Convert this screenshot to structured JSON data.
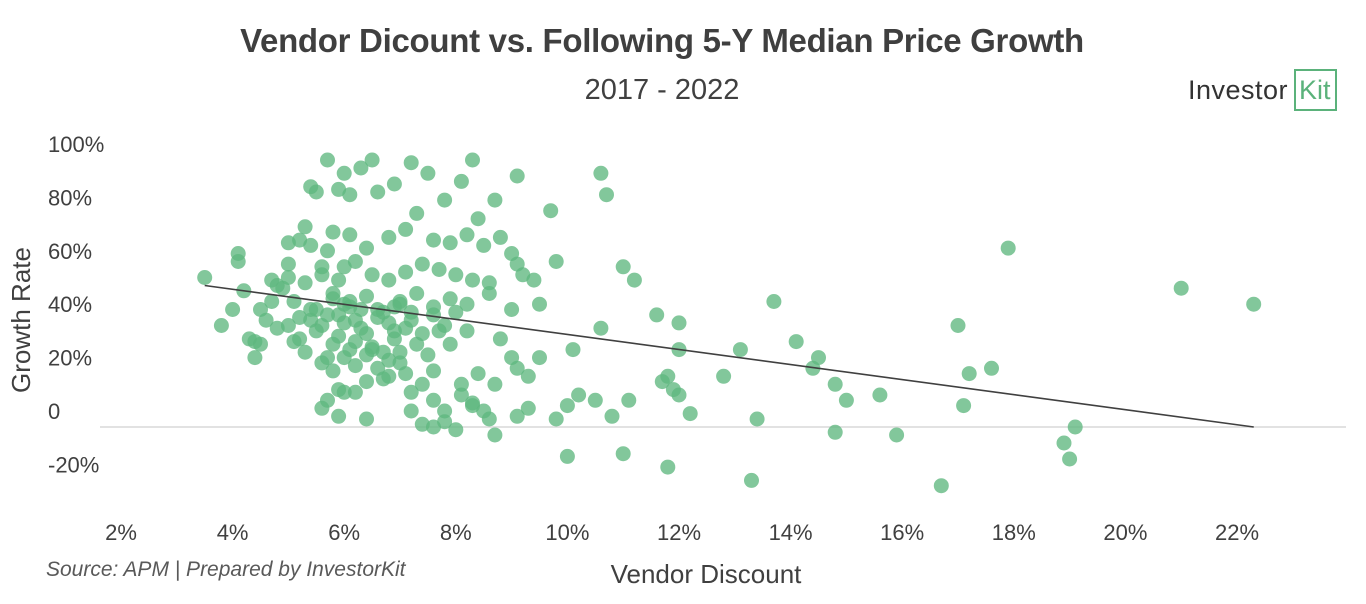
{
  "chart_data": {
    "type": "scatter",
    "title": "Vendor Dicount vs. Following 5-Y Median Price Growth",
    "subtitle": "2017 - 2022",
    "xlabel": "Vendor Discount",
    "ylabel": "Growth Rate",
    "x_ticks": [
      "2%",
      "4%",
      "6%",
      "8%",
      "10%",
      "12%",
      "14%",
      "16%",
      "18%",
      "20%",
      "22%"
    ],
    "y_ticks": [
      "100%",
      "80%",
      "60%",
      "40%",
      "20%",
      "0",
      "-20%"
    ],
    "xlim": [
      1.5,
      23.8
    ],
    "ylim": [
      -30,
      105
    ],
    "grid": false,
    "marker_color": "#5fb77f",
    "trendline": {
      "x": [
        3.5,
        22.3
      ],
      "y": [
        53,
        0
      ],
      "color": "#404040"
    },
    "points": [
      [
        3.5,
        56
      ],
      [
        3.8,
        38
      ],
      [
        4.1,
        65
      ],
      [
        4.1,
        62
      ],
      [
        4.2,
        51
      ],
      [
        4.3,
        33
      ],
      [
        4.4,
        26
      ],
      [
        4.5,
        44
      ],
      [
        4.6,
        40
      ],
      [
        4.7,
        55
      ],
      [
        4.8,
        53
      ],
      [
        4.9,
        52
      ],
      [
        5.0,
        61
      ],
      [
        5.1,
        47
      ],
      [
        5.2,
        70
      ],
      [
        5.3,
        75
      ],
      [
        5.4,
        90
      ],
      [
        5.5,
        88
      ],
      [
        5.6,
        57
      ],
      [
        5.7,
        66
      ],
      [
        5.8,
        50
      ],
      [
        5.9,
        42
      ],
      [
        6.0,
        60
      ],
      [
        6.1,
        47
      ],
      [
        4.0,
        44
      ],
      [
        4.4,
        32
      ],
      [
        4.7,
        47
      ],
      [
        5.0,
        38
      ],
      [
        5.2,
        33
      ],
      [
        5.4,
        44
      ],
      [
        5.6,
        38
      ],
      [
        5.8,
        31
      ],
      [
        6.0,
        46
      ],
      [
        6.2,
        40
      ],
      [
        6.4,
        35
      ],
      [
        6.6,
        44
      ],
      [
        6.8,
        39
      ],
      [
        7.0,
        46
      ],
      [
        7.2,
        40
      ],
      [
        7.4,
        35
      ],
      [
        7.6,
        45
      ],
      [
        7.8,
        38
      ],
      [
        8.0,
        43
      ],
      [
        8.2,
        36
      ],
      [
        4.5,
        31
      ],
      [
        4.8,
        37
      ],
      [
        5.1,
        32
      ],
      [
        5.3,
        28
      ],
      [
        5.5,
        36
      ],
      [
        5.7,
        26
      ],
      [
        5.9,
        34
      ],
      [
        6.1,
        29
      ],
      [
        6.3,
        37
      ],
      [
        6.5,
        30
      ],
      [
        6.7,
        28
      ],
      [
        6.9,
        33
      ],
      [
        7.1,
        37
      ],
      [
        7.3,
        31
      ],
      [
        7.5,
        27
      ],
      [
        7.7,
        36
      ],
      [
        7.9,
        31
      ],
      [
        5.0,
        56
      ],
      [
        5.3,
        54
      ],
      [
        5.6,
        60
      ],
      [
        5.9,
        55
      ],
      [
        6.2,
        62
      ],
      [
        6.5,
        57
      ],
      [
        6.8,
        55
      ],
      [
        7.1,
        58
      ],
      [
        7.4,
        61
      ],
      [
        7.7,
        59
      ],
      [
        8.0,
        57
      ],
      [
        8.3,
        55
      ],
      [
        8.6,
        54
      ],
      [
        5.2,
        41
      ],
      [
        5.5,
        44
      ],
      [
        5.8,
        48
      ],
      [
        6.1,
        45
      ],
      [
        6.4,
        49
      ],
      [
        6.7,
        43
      ],
      [
        7.0,
        47
      ],
      [
        7.3,
        50
      ],
      [
        7.6,
        42
      ],
      [
        7.9,
        48
      ],
      [
        5.4,
        40
      ],
      [
        5.7,
        42
      ],
      [
        6.0,
        39
      ],
      [
        6.3,
        44
      ],
      [
        6.6,
        41
      ],
      [
        6.9,
        45
      ],
      [
        7.2,
        43
      ],
      [
        5.6,
        24
      ],
      [
        5.8,
        21
      ],
      [
        6.0,
        26
      ],
      [
        6.2,
        23
      ],
      [
        6.4,
        27
      ],
      [
        6.6,
        22
      ],
      [
        6.8,
        25
      ],
      [
        7.0,
        28
      ],
      [
        5.7,
        10
      ],
      [
        5.9,
        14
      ],
      [
        6.2,
        13
      ],
      [
        6.4,
        17
      ],
      [
        6.7,
        18
      ],
      [
        7.2,
        13
      ],
      [
        7.4,
        16
      ],
      [
        7.6,
        10
      ],
      [
        7.8,
        6
      ],
      [
        8.1,
        12
      ],
      [
        8.3,
        9
      ],
      [
        8.5,
        6
      ],
      [
        8.7,
        16
      ],
      [
        5.0,
        69
      ],
      [
        5.4,
        68
      ],
      [
        5.8,
        73
      ],
      [
        6.1,
        72
      ],
      [
        6.4,
        67
      ],
      [
        6.8,
        71
      ],
      [
        7.1,
        74
      ],
      [
        7.3,
        80
      ],
      [
        7.6,
        70
      ],
      [
        7.9,
        69
      ],
      [
        8.2,
        72
      ],
      [
        8.5,
        68
      ],
      [
        8.8,
        71
      ],
      [
        5.9,
        89
      ],
      [
        6.1,
        87
      ],
      [
        6.3,
        97
      ],
      [
        6.6,
        88
      ],
      [
        6.9,
        91
      ],
      [
        7.2,
        99
      ],
      [
        7.5,
        95
      ],
      [
        7.8,
        85
      ],
      [
        8.1,
        92
      ],
      [
        8.4,
        78
      ],
      [
        8.7,
        85
      ],
      [
        5.7,
        100
      ],
      [
        6.0,
        95
      ],
      [
        6.5,
        100
      ],
      [
        8.3,
        100
      ],
      [
        9.1,
        94
      ],
      [
        10.6,
        95
      ],
      [
        10.7,
        87
      ],
      [
        9.7,
        81
      ],
      [
        9.0,
        65
      ],
      [
        9.1,
        61
      ],
      [
        9.2,
        57
      ],
      [
        9.4,
        55
      ],
      [
        9.8,
        62
      ],
      [
        8.2,
        46
      ],
      [
        8.6,
        50
      ],
      [
        9.0,
        44
      ],
      [
        9.5,
        46
      ],
      [
        8.8,
        33
      ],
      [
        9.0,
        26
      ],
      [
        9.1,
        22
      ],
      [
        9.3,
        19
      ],
      [
        9.5,
        26
      ],
      [
        8.4,
        20
      ],
      [
        8.1,
        16
      ],
      [
        7.6,
        21
      ],
      [
        7.1,
        20
      ],
      [
        7.2,
        6
      ],
      [
        7.4,
        1
      ],
      [
        7.6,
        0
      ],
      [
        7.8,
        2
      ],
      [
        8.0,
        -1
      ],
      [
        8.3,
        8
      ],
      [
        8.6,
        3
      ],
      [
        8.7,
        -3
      ],
      [
        9.1,
        4
      ],
      [
        9.3,
        7
      ],
      [
        9.8,
        3
      ],
      [
        10.0,
        8
      ],
      [
        10.2,
        12
      ],
      [
        6.5,
        29
      ],
      [
        6.0,
        13
      ],
      [
        5.6,
        7
      ],
      [
        5.9,
        4
      ],
      [
        6.4,
        3
      ],
      [
        6.8,
        19
      ],
      [
        7.0,
        24
      ],
      [
        6.2,
        32
      ],
      [
        6.9,
        36
      ],
      [
        10.0,
        -11
      ],
      [
        10.1,
        29
      ],
      [
        10.5,
        10
      ],
      [
        10.6,
        37
      ],
      [
        10.8,
        4
      ],
      [
        11.0,
        60
      ],
      [
        11.1,
        10
      ],
      [
        11.2,
        55
      ],
      [
        11.6,
        42
      ],
      [
        11.7,
        17
      ],
      [
        11.8,
        19
      ],
      [
        11.9,
        14
      ],
      [
        12.0,
        12
      ],
      [
        11.0,
        -10
      ],
      [
        11.8,
        -15
      ],
      [
        12.2,
        5
      ],
      [
        12.0,
        39
      ],
      [
        12.0,
        29
      ],
      [
        12.8,
        19
      ],
      [
        13.1,
        29
      ],
      [
        13.4,
        3
      ],
      [
        13.7,
        47
      ],
      [
        14.1,
        32
      ],
      [
        14.4,
        22
      ],
      [
        14.5,
        26
      ],
      [
        14.8,
        16
      ],
      [
        15.0,
        10
      ],
      [
        13.3,
        -20
      ],
      [
        14.8,
        -2
      ],
      [
        15.6,
        12
      ],
      [
        15.9,
        -3
      ],
      [
        16.7,
        -22
      ],
      [
        17.0,
        38
      ],
      [
        17.1,
        8
      ],
      [
        17.2,
        20
      ],
      [
        17.6,
        22
      ],
      [
        17.9,
        67
      ],
      [
        18.9,
        -6
      ],
      [
        19.0,
        -12
      ],
      [
        19.1,
        0
      ],
      [
        21.0,
        52
      ],
      [
        22.3,
        46
      ]
    ]
  }
}
